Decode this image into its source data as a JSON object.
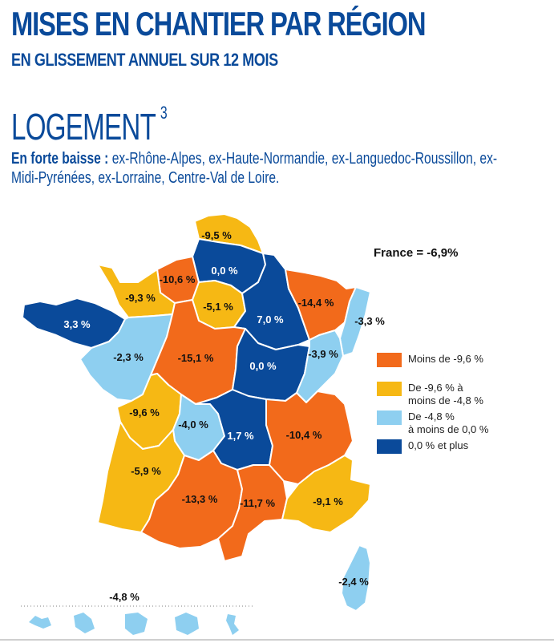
{
  "header": {
    "title": "MISES EN CHANTIER PAR RÉGION",
    "subtitle": "EN GLISSEMENT ANNUEL SUR 12 MOIS"
  },
  "section": {
    "title": "LOGEMENT",
    "footnote": "3",
    "note_bold": "En forte baisse :",
    "note_text": " ex-Rhône-Alpes, ex-Haute-Normandie, ex-Languedoc-Roussillon, ex-Midi-Pyrénées, ex-Lorraine, Centre-Val de Loire."
  },
  "france_total": "France = -6,9%",
  "colors": {
    "dark_orange": "#f26a1b",
    "yellow": "#f6b814",
    "light_blue": "#8ecff0",
    "dark_blue": "#0a4a9a"
  },
  "legend": [
    {
      "label": "Moins de -9,6 %",
      "color": "#f26a1b"
    },
    {
      "label": "De -9,6 % à\nmoins de -4,8 %",
      "color": "#f6b814"
    },
    {
      "label": "De -4,8 %\nà moins de 0,0 %",
      "color": "#8ecff0"
    },
    {
      "label": "0,0 % et plus",
      "color": "#0a4a9a"
    }
  ],
  "regions": [
    {
      "name": "Nord-Pas-de-Calais",
      "value": "-9,5 %",
      "color": "#f6b814"
    },
    {
      "name": "Picardie",
      "value": "0,0 %",
      "color": "#0a4a9a"
    },
    {
      "name": "Haute-Normandie",
      "value": "-10,6 %",
      "color": "#f26a1b"
    },
    {
      "name": "Basse-Normandie",
      "value": "-9,3 %",
      "color": "#f6b814"
    },
    {
      "name": "Île-de-France",
      "value": "-5,1 %",
      "color": "#f6b814"
    },
    {
      "name": "Champagne-Ardenne",
      "value": "7,0 %",
      "color": "#0a4a9a"
    },
    {
      "name": "Lorraine",
      "value": "-14,4 %",
      "color": "#f26a1b"
    },
    {
      "name": "Alsace",
      "value": "-3,3 %",
      "color": "#8ecff0"
    },
    {
      "name": "Bretagne",
      "value": "3,3 %",
      "color": "#0a4a9a"
    },
    {
      "name": "Pays de la Loire",
      "value": "-2,3 %",
      "color": "#8ecff0"
    },
    {
      "name": "Centre-Val de Loire",
      "value": "-15,1 %",
      "color": "#f26a1b"
    },
    {
      "name": "Bourgogne",
      "value": "0,0 %",
      "color": "#0a4a9a"
    },
    {
      "name": "Franche-Comté",
      "value": "-3,9 %",
      "color": "#8ecff0"
    },
    {
      "name": "Poitou-Charentes",
      "value": "-9,6 %",
      "color": "#f6b814"
    },
    {
      "name": "Limousin",
      "value": "-4,0 %",
      "color": "#8ecff0"
    },
    {
      "name": "Auvergne",
      "value": "1,7 %",
      "color": "#0a4a9a"
    },
    {
      "name": "Rhône-Alpes",
      "value": "-10,4 %",
      "color": "#f26a1b"
    },
    {
      "name": "Aquitaine",
      "value": "-5,9 %",
      "color": "#f6b814"
    },
    {
      "name": "Midi-Pyrénées",
      "value": "-13,3 %",
      "color": "#f26a1b"
    },
    {
      "name": "Languedoc-Roussillon",
      "value": "-11,7 %",
      "color": "#f26a1b"
    },
    {
      "name": "Provence-Alpes-Côte d'Azur",
      "value": "-9,1 %",
      "color": "#f6b814"
    },
    {
      "name": "Corse",
      "value": "-2,4 %",
      "color": "#8ecff0"
    }
  ],
  "overseas": {
    "value": "-4,8 %",
    "color": "#8ecff0"
  }
}
